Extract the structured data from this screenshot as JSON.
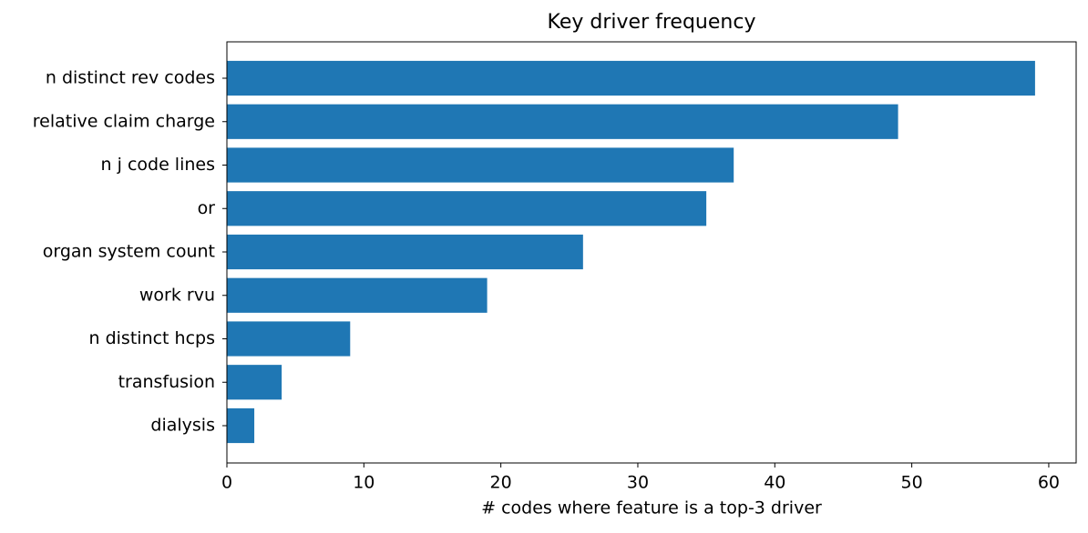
{
  "chart_data": {
    "type": "barh",
    "title": "Key driver frequency",
    "x_label": "# codes where feature is a top-3 driver",
    "categories": [
      "n distinct rev codes",
      "relative claim charge",
      "n j code lines",
      "or",
      "organ system count",
      "work rvu",
      "n distinct hcps",
      "transfusion",
      "dialysis"
    ],
    "values": [
      59,
      49,
      37,
      35,
      26,
      19,
      9,
      4,
      2
    ],
    "color": "#1f77b4",
    "xlim": [
      0,
      62
    ],
    "xticks": [
      0,
      10,
      20,
      30,
      40,
      50,
      60
    ],
    "grid": false
  }
}
